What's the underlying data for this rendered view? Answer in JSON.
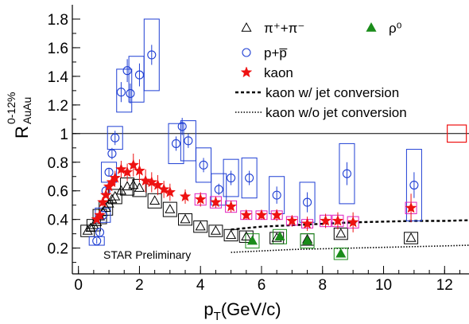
{
  "chart_data": {
    "type": "scatter",
    "annotation": "STAR Preliminary",
    "xlabel": {
      "main": "p",
      "sub": "T",
      "rest": "(GeV/c)"
    },
    "ylabel": {
      "main": "R",
      "sup": "0-12%",
      "sub": "AuAu"
    },
    "xlim": [
      -0.2,
      12.8
    ],
    "ylim": [
      0.02,
      1.9
    ],
    "x_ticks": [
      0,
      2,
      4,
      6,
      8,
      10,
      12
    ],
    "y_ticks": [
      0.2,
      0.4,
      0.6,
      0.8,
      1,
      1.2,
      1.4,
      1.6,
      1.8
    ],
    "reference_line": 1,
    "legend": [
      {
        "key": "pion",
        "label": "π⁺+π⁻",
        "marker": "open-triangle",
        "color": "#000000"
      },
      {
        "key": "rho",
        "label": "ρ⁰",
        "marker": "filled-triangle",
        "color": "#1a8c1a"
      },
      {
        "key": "proton",
        "label": "p+p̅",
        "marker": "open-circle",
        "color": "#1f3fd4"
      },
      {
        "key": "kaon",
        "label": "kaon",
        "marker": "star",
        "color": "#ee1111"
      },
      {
        "key": "kaon_jet",
        "label": "kaon w/ jet conversion",
        "marker": "dashed-line",
        "color": "#000000"
      },
      {
        "key": "kaon_nojet",
        "label": "kaon w/o jet conversion",
        "marker": "dotted-line",
        "color": "#000000"
      }
    ],
    "colors": {
      "pion": "#000000",
      "proton": "#1f3fd4",
      "kaon": "#ee1111",
      "kaon_syst": "#e020c0",
      "rho": "#1a8c1a",
      "norm_box": "#ee1111"
    },
    "series": [
      {
        "key": "pion",
        "points": [
          [
            0.3,
            0.32
          ],
          [
            0.4,
            0.34
          ],
          [
            0.5,
            0.36
          ],
          [
            0.6,
            0.38
          ],
          [
            0.7,
            0.42
          ],
          [
            0.8,
            0.45
          ],
          [
            0.9,
            0.48
          ],
          [
            1.0,
            0.51
          ],
          [
            1.1,
            0.54
          ],
          [
            1.2,
            0.56
          ],
          [
            1.4,
            0.6
          ],
          [
            1.6,
            0.63
          ],
          [
            1.8,
            0.64
          ],
          [
            2.0,
            0.62
          ],
          [
            2.5,
            0.53
          ],
          [
            3.0,
            0.47
          ],
          [
            3.5,
            0.4
          ],
          [
            4.0,
            0.35
          ],
          [
            4.5,
            0.32
          ],
          [
            5.0,
            0.29
          ],
          [
            5.5,
            0.28
          ],
          [
            6.5,
            0.27
          ],
          [
            7.5,
            0.26
          ],
          [
            8.6,
            0.3
          ],
          [
            10.9,
            0.27
          ]
        ],
        "syst": [
          [
            0.3,
            0.32,
            0.04
          ],
          [
            0.5,
            0.36,
            0.04
          ],
          [
            0.7,
            0.42,
            0.05
          ],
          [
            0.9,
            0.48,
            0.05
          ],
          [
            1.2,
            0.56,
            0.05
          ],
          [
            1.6,
            0.63,
            0.06
          ],
          [
            2.0,
            0.62,
            0.06
          ],
          [
            2.5,
            0.53,
            0.05
          ],
          [
            3.0,
            0.47,
            0.05
          ],
          [
            3.5,
            0.4,
            0.04
          ],
          [
            4.0,
            0.35,
            0.04
          ],
          [
            4.5,
            0.32,
            0.04
          ],
          [
            5.0,
            0.29,
            0.04
          ],
          [
            5.5,
            0.28,
            0.04
          ],
          [
            6.5,
            0.27,
            0.04
          ],
          [
            7.5,
            0.26,
            0.04
          ],
          [
            8.6,
            0.3,
            0.04
          ],
          [
            10.9,
            0.27,
            0.04
          ]
        ]
      },
      {
        "key": "proton",
        "points": [
          [
            0.6,
            0.25
          ],
          [
            0.7,
            0.31
          ],
          [
            0.8,
            0.43
          ],
          [
            0.9,
            0.6
          ],
          [
            1.0,
            0.73
          ],
          [
            1.1,
            0.86
          ],
          [
            1.2,
            0.97
          ],
          [
            1.4,
            1.29
          ],
          [
            1.6,
            1.44
          ],
          [
            1.7,
            1.28
          ],
          [
            2.0,
            1.41
          ],
          [
            2.4,
            1.55
          ],
          [
            3.2,
            0.93
          ],
          [
            3.4,
            1.05
          ],
          [
            3.6,
            0.95
          ],
          [
            4.1,
            0.78
          ],
          [
            4.6,
            0.61
          ],
          [
            5.0,
            0.69
          ],
          [
            5.6,
            0.69
          ],
          [
            6.5,
            0.57
          ],
          [
            7.5,
            0.52
          ],
          [
            8.8,
            0.72
          ],
          [
            11.0,
            0.64
          ]
        ],
        "errors": [
          [
            0.6,
            0.25,
            0.02
          ],
          [
            0.7,
            0.31,
            0.02
          ],
          [
            0.8,
            0.43,
            0.02
          ],
          [
            0.9,
            0.6,
            0.03
          ],
          [
            1.0,
            0.73,
            0.03
          ],
          [
            1.1,
            0.86,
            0.04
          ],
          [
            1.2,
            0.97,
            0.05
          ],
          [
            1.4,
            1.29,
            0.07
          ],
          [
            1.6,
            1.44,
            0.08
          ],
          [
            1.7,
            1.28,
            0.07
          ],
          [
            2.0,
            1.41,
            0.08
          ],
          [
            2.4,
            1.55,
            0.07
          ],
          [
            3.2,
            0.93,
            0.05
          ],
          [
            3.4,
            1.05,
            0.06
          ],
          [
            3.6,
            0.95,
            0.05
          ],
          [
            4.1,
            0.78,
            0.05
          ],
          [
            4.6,
            0.61,
            0.04
          ],
          [
            5.0,
            0.69,
            0.05
          ],
          [
            5.6,
            0.69,
            0.05
          ],
          [
            6.5,
            0.57,
            0.06
          ],
          [
            7.5,
            0.52,
            0.07
          ],
          [
            8.8,
            0.72,
            0.08
          ],
          [
            11.0,
            0.64,
            0.09
          ]
        ],
        "syst": [
          [
            0.6,
            0.25,
            0.03
          ],
          [
            0.8,
            0.43,
            0.05
          ],
          [
            1.0,
            0.73,
            0.07
          ],
          [
            1.2,
            0.97,
            0.08
          ],
          [
            1.5,
            1.3,
            0.15
          ],
          [
            1.9,
            1.38,
            0.16
          ],
          [
            2.4,
            1.55,
            0.25
          ],
          [
            3.2,
            0.93,
            0.14
          ],
          [
            3.6,
            0.95,
            0.14
          ],
          [
            4.1,
            0.78,
            0.12
          ],
          [
            4.6,
            0.61,
            0.11
          ],
          [
            5.0,
            0.69,
            0.13
          ],
          [
            5.6,
            0.69,
            0.14
          ],
          [
            6.5,
            0.57,
            0.13
          ],
          [
            7.5,
            0.52,
            0.14
          ],
          [
            8.8,
            0.72,
            0.21
          ],
          [
            11.0,
            0.64,
            0.25
          ]
        ]
      },
      {
        "key": "kaon",
        "points": [
          [
            0.6,
            0.4
          ],
          [
            0.7,
            0.43
          ],
          [
            0.8,
            0.52
          ],
          [
            0.9,
            0.57
          ],
          [
            1.0,
            0.63
          ],
          [
            1.1,
            0.66
          ],
          [
            1.2,
            0.69
          ],
          [
            1.4,
            0.75
          ],
          [
            1.6,
            0.73
          ],
          [
            1.8,
            0.78
          ],
          [
            2.0,
            0.74
          ],
          [
            2.2,
            0.67
          ],
          [
            2.4,
            0.66
          ],
          [
            2.6,
            0.64
          ],
          [
            2.8,
            0.61
          ],
          [
            3.0,
            0.59
          ],
          [
            3.5,
            0.56
          ],
          [
            4.0,
            0.54
          ],
          [
            4.5,
            0.52
          ],
          [
            5.0,
            0.49
          ],
          [
            5.5,
            0.43
          ],
          [
            6.0,
            0.43
          ],
          [
            6.5,
            0.43
          ],
          [
            7.0,
            0.39
          ],
          [
            7.5,
            0.37
          ],
          [
            8.1,
            0.39
          ],
          [
            8.5,
            0.39
          ],
          [
            9.0,
            0.38
          ],
          [
            10.9,
            0.48
          ]
        ],
        "errors": [
          [
            0.6,
            0.4,
            0.02
          ],
          [
            0.8,
            0.52,
            0.03
          ],
          [
            1.0,
            0.63,
            0.04
          ],
          [
            1.2,
            0.69,
            0.05
          ],
          [
            1.4,
            0.75,
            0.06
          ],
          [
            1.6,
            0.73,
            0.06
          ],
          [
            1.8,
            0.78,
            0.08
          ],
          [
            2.0,
            0.74,
            0.08
          ],
          [
            2.2,
            0.67,
            0.08
          ],
          [
            2.4,
            0.66,
            0.07
          ],
          [
            2.6,
            0.64,
            0.07
          ],
          [
            2.8,
            0.61,
            0.06
          ],
          [
            3.0,
            0.59,
            0.06
          ],
          [
            3.5,
            0.56,
            0.05
          ],
          [
            4.0,
            0.54,
            0.05
          ],
          [
            4.5,
            0.52,
            0.04
          ],
          [
            5.0,
            0.49,
            0.04
          ],
          [
            5.5,
            0.43,
            0.03
          ],
          [
            6.0,
            0.43,
            0.03
          ],
          [
            6.5,
            0.43,
            0.04
          ],
          [
            7.0,
            0.39,
            0.04
          ],
          [
            7.5,
            0.37,
            0.05
          ],
          [
            8.1,
            0.39,
            0.05
          ],
          [
            8.5,
            0.39,
            0.06
          ],
          [
            9.0,
            0.38,
            0.07
          ],
          [
            10.9,
            0.48,
            0.1
          ]
        ],
        "syst": [
          [
            4.0,
            0.54,
            0.04
          ],
          [
            4.5,
            0.52,
            0.04
          ],
          [
            5.0,
            0.49,
            0.04
          ],
          [
            5.5,
            0.43,
            0.03
          ],
          [
            6.0,
            0.43,
            0.03
          ],
          [
            6.5,
            0.43,
            0.03
          ],
          [
            7.0,
            0.39,
            0.03
          ],
          [
            7.5,
            0.37,
            0.03
          ],
          [
            8.1,
            0.39,
            0.04
          ],
          [
            8.5,
            0.39,
            0.04
          ],
          [
            9.0,
            0.38,
            0.04
          ],
          [
            10.9,
            0.48,
            0.04
          ]
        ]
      },
      {
        "key": "rho",
        "points": [
          [
            5.7,
            0.25
          ],
          [
            6.6,
            0.28
          ],
          [
            7.5,
            0.25
          ],
          [
            8.6,
            0.16
          ]
        ],
        "syst": [
          [
            5.7,
            0.25,
            0.05
          ],
          [
            6.6,
            0.28,
            0.05
          ],
          [
            7.5,
            0.25,
            0.05
          ],
          [
            8.6,
            0.16,
            0.04
          ]
        ]
      }
    ],
    "curves": [
      {
        "key": "kaon_jet",
        "style": "dashed",
        "points": [
          [
            5.0,
            0.33
          ],
          [
            6.0,
            0.35
          ],
          [
            7.0,
            0.36
          ],
          [
            8.0,
            0.37
          ],
          [
            9.0,
            0.38
          ],
          [
            10.0,
            0.385
          ],
          [
            11.0,
            0.39
          ],
          [
            12.0,
            0.39
          ],
          [
            12.8,
            0.395
          ]
        ]
      },
      {
        "key": "kaon_nojet",
        "style": "dotted",
        "points": [
          [
            5.0,
            0.17
          ],
          [
            6.0,
            0.18
          ],
          [
            7.0,
            0.19
          ],
          [
            8.0,
            0.195
          ],
          [
            9.0,
            0.2
          ],
          [
            10.0,
            0.205
          ],
          [
            11.0,
            0.21
          ],
          [
            12.0,
            0.215
          ],
          [
            12.8,
            0.22
          ]
        ]
      }
    ],
    "norm_box": {
      "x": 12.4,
      "y": 1.0,
      "half_height": 0.06
    }
  }
}
